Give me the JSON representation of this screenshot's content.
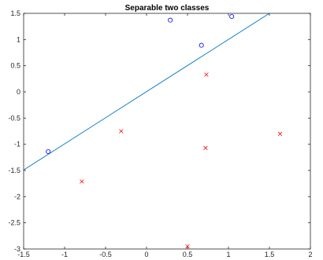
{
  "chart_data": {
    "type": "scatter",
    "title": "Separable two classes",
    "xlabel": "",
    "ylabel": "",
    "xlim": [
      -1.5,
      2
    ],
    "ylim": [
      -3,
      1.5
    ],
    "xticks": [
      "-1.5",
      "-1",
      "-0.5",
      "0",
      "0.5",
      "1",
      "1.5",
      "2"
    ],
    "yticks": [
      "-3",
      "-2.5",
      "-2",
      "-1.5",
      "-1",
      "-0.5",
      "0",
      "0.5",
      "1",
      "1.5"
    ],
    "xtick_values": [
      -1.5,
      -1,
      -0.5,
      0,
      0.5,
      1,
      1.5,
      2
    ],
    "ytick_values": [
      -3,
      -2.5,
      -2,
      -1.5,
      -1,
      -0.5,
      0,
      0.5,
      1,
      1.5
    ],
    "grid": false,
    "series": [
      {
        "marker": "circle",
        "color": "#0000ff",
        "points": [
          [
            -1.2,
            -1.14
          ],
          [
            0.29,
            1.37
          ],
          [
            0.67,
            0.89
          ],
          [
            1.04,
            1.44
          ]
        ]
      },
      {
        "marker": "x",
        "color": "#ff0000",
        "points": [
          [
            -0.79,
            -1.71
          ],
          [
            -0.31,
            -0.75
          ],
          [
            0.73,
            0.33
          ],
          [
            0.72,
            -1.07
          ],
          [
            1.63,
            -0.8
          ],
          [
            0.5,
            -2.95
          ]
        ]
      }
    ],
    "lines": [
      {
        "color": "#0072bd",
        "points": [
          [
            -1.5,
            -1.49
          ],
          [
            1.5,
            1.5
          ]
        ]
      }
    ]
  }
}
